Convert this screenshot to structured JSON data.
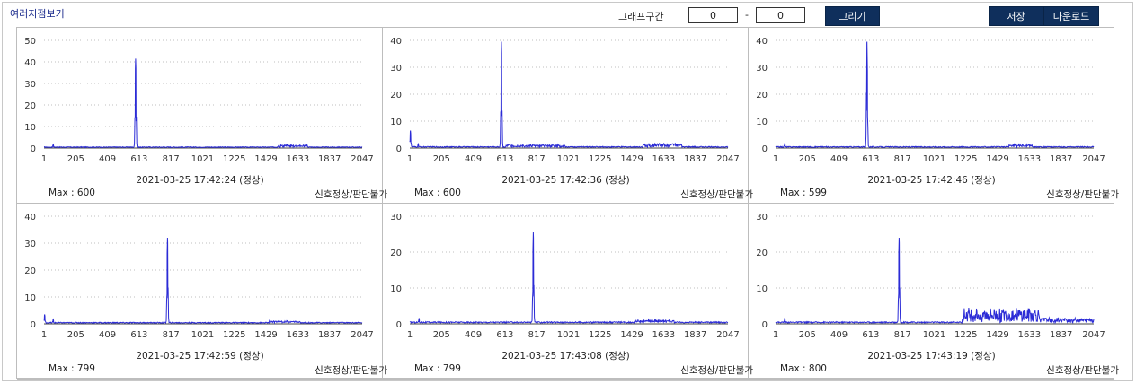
{
  "header": {
    "title": "여러지점보기",
    "range_label": "그래프구간",
    "range_from": "0",
    "range_to": "0",
    "range_separator": "-",
    "draw_label": "그리기",
    "save_label": "저장",
    "download_label": "다운로드"
  },
  "colors": {
    "line": "#2b2bd6",
    "button_bg": "#0f2f5c",
    "grid_dots": "#bfbfbf"
  },
  "chart_data": [
    {
      "type": "line",
      "xticks": [
        "1",
        "205",
        "409",
        "613",
        "817",
        "1021",
        "1225",
        "1429",
        "1633",
        "1837",
        "2047"
      ],
      "yticks": [
        "0",
        "10",
        "20",
        "30",
        "40",
        "50"
      ],
      "ylim": [
        0,
        50
      ],
      "xlim": [
        1,
        2047
      ],
      "peaks": [
        {
          "x": 590,
          "y": 41.5
        },
        {
          "x": 60,
          "y": 1.8
        }
      ],
      "noise": [
        {
          "from": 1500,
          "to": 1700,
          "amp": 1.2
        }
      ],
      "timestamp": "2021-03-25 17:42:24 (정상)",
      "max_label": "Max : 600",
      "status": "신호정상/판단불가"
    },
    {
      "type": "line",
      "xticks": [
        "1",
        "205",
        "409",
        "613",
        "817",
        "1021",
        "1225",
        "1429",
        "1633",
        "1837",
        "2047"
      ],
      "yticks": [
        "0",
        "10",
        "20",
        "30",
        "40"
      ],
      "ylim": [
        0,
        40
      ],
      "xlim": [
        1,
        2047
      ],
      "peaks": [
        {
          "x": 590,
          "y": 39.5
        },
        {
          "x": 55,
          "y": 1.6
        },
        {
          "x": 5,
          "y": 6.5
        }
      ],
      "noise": [
        {
          "from": 620,
          "to": 1000,
          "amp": 0.8
        },
        {
          "from": 1500,
          "to": 1750,
          "amp": 1.3
        }
      ],
      "timestamp": "2021-03-25 17:42:36 (정상)",
      "max_label": "Max : 600",
      "status": "신호정상/판단불가"
    },
    {
      "type": "line",
      "xticks": [
        "1",
        "205",
        "409",
        "613",
        "817",
        "1021",
        "1225",
        "1429",
        "1633",
        "1837",
        "2047"
      ],
      "yticks": [
        "0",
        "10",
        "20",
        "30",
        "40"
      ],
      "ylim": [
        0,
        40
      ],
      "xlim": [
        1,
        2047
      ],
      "peaks": [
        {
          "x": 589,
          "y": 39.5
        },
        {
          "x": 60,
          "y": 1.7
        }
      ],
      "noise": [
        {
          "from": 1500,
          "to": 1650,
          "amp": 0.9
        }
      ],
      "timestamp": "2021-03-25 17:42:46 (정상)",
      "max_label": "Max : 599",
      "status": "신호정상/판단불가"
    },
    {
      "type": "line",
      "xticks": [
        "1",
        "205",
        "409",
        "613",
        "817",
        "1021",
        "1225",
        "1429",
        "1633",
        "1837",
        "2047"
      ],
      "yticks": [
        "0",
        "10",
        "20",
        "30",
        "40"
      ],
      "ylim": [
        0,
        40
      ],
      "xlim": [
        1,
        2047
      ],
      "peaks": [
        {
          "x": 795,
          "y": 32
        },
        {
          "x": 60,
          "y": 1.8
        },
        {
          "x": 5,
          "y": 3.5
        }
      ],
      "noise": [
        {
          "from": 1450,
          "to": 1650,
          "amp": 0.7
        }
      ],
      "timestamp": "2021-03-25 17:42:59 (정상)",
      "max_label": "Max : 799",
      "status": "신호정상/판단불가"
    },
    {
      "type": "line",
      "xticks": [
        "1",
        "205",
        "409",
        "613",
        "817",
        "1021",
        "1225",
        "1429",
        "1633",
        "1837",
        "2047"
      ],
      "yticks": [
        "0",
        "10",
        "20",
        "30"
      ],
      "ylim": [
        0,
        30
      ],
      "xlim": [
        1,
        2047
      ],
      "peaks": [
        {
          "x": 795,
          "y": 25.5
        },
        {
          "x": 60,
          "y": 1.5
        }
      ],
      "noise": [
        {
          "from": 1450,
          "to": 1700,
          "amp": 0.6
        }
      ],
      "timestamp": "2021-03-25 17:43:08 (정상)",
      "max_label": "Max : 799",
      "status": "신호정상/판단불가"
    },
    {
      "type": "line",
      "xticks": [
        "1",
        "205",
        "409",
        "613",
        "817",
        "1021",
        "1225",
        "1429",
        "1633",
        "1837",
        "2047"
      ],
      "yticks": [
        "0",
        "10",
        "20",
        "30"
      ],
      "ylim": [
        0,
        30
      ],
      "xlim": [
        1,
        2047
      ],
      "peaks": [
        {
          "x": 795,
          "y": 24
        },
        {
          "x": 60,
          "y": 1.6
        }
      ],
      "noise": [
        {
          "from": 1200,
          "to": 1700,
          "amp": 4
        },
        {
          "from": 1700,
          "to": 2047,
          "amp": 1.2
        }
      ],
      "timestamp": "2021-03-25 17:43:19 (정상)",
      "max_label": "Max : 800",
      "status": "신호정상/판단불가"
    }
  ]
}
